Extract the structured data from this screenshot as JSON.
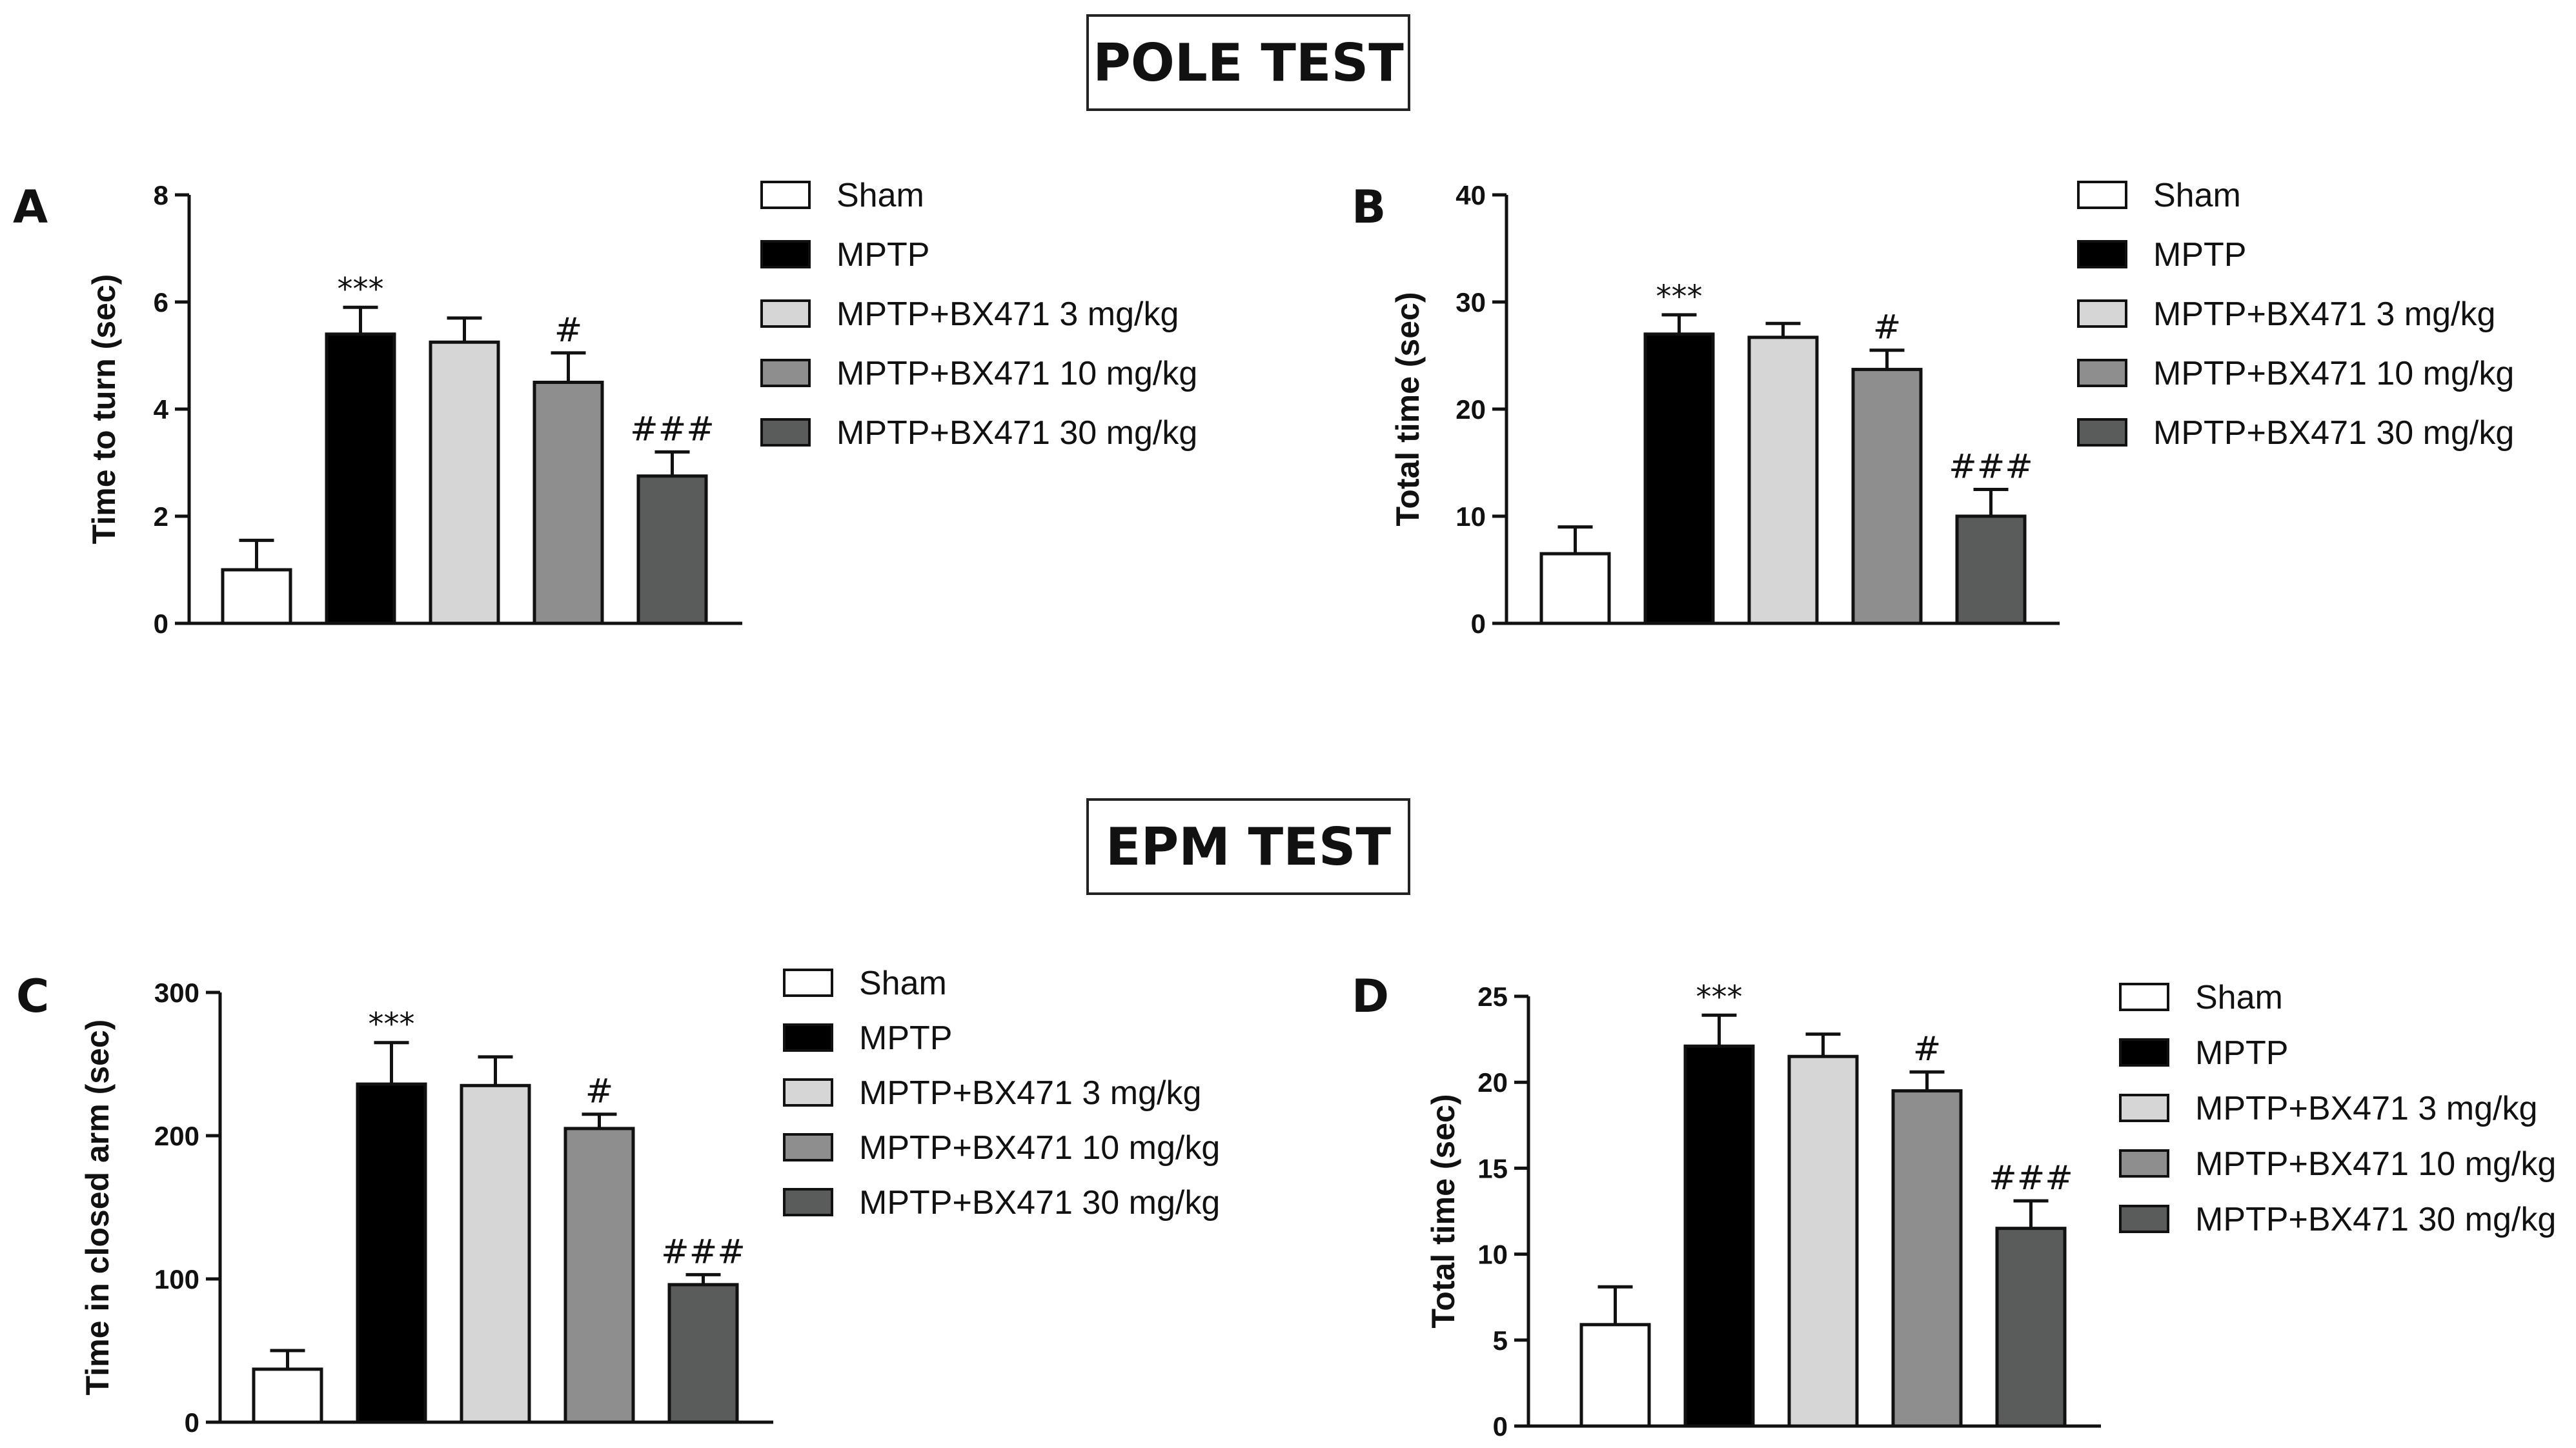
{
  "sections": [
    {
      "id": "pole",
      "title": "POLE TEST"
    },
    {
      "id": "epm",
      "title": "EPM TEST"
    }
  ],
  "colors": {
    "Sham": "#ffffff",
    "MPTP": "#000000",
    "MPTP+BX471 3 mg/kg": "#d6d6d6",
    "MPTP+BX471 10 mg/kg": "#8e8e8e",
    "MPTP+BX471 30 mg/kg": "#5a5c5c"
  },
  "chart_data": [
    {
      "panel": "A",
      "section": "POLE TEST",
      "type": "bar",
      "ylabel": "Time to turn (sec)",
      "ylim": [
        0,
        8
      ],
      "yticks": [
        0,
        2,
        4,
        6,
        8
      ],
      "categories": [
        "Sham",
        "MPTP",
        "MPTP+BX471 3 mg/kg",
        "MPTP+BX471 10 mg/kg",
        "MPTP+BX471 30 mg/kg"
      ],
      "values": [
        1.0,
        5.4,
        5.25,
        4.5,
        2.75
      ],
      "errors": [
        0.55,
        0.5,
        0.45,
        0.55,
        0.45
      ],
      "annotations": [
        "",
        "***",
        "",
        "#",
        "###"
      ],
      "legend": [
        "Sham",
        "MPTP",
        "MPTP+BX471 3 mg/kg",
        "MPTP+BX471 10 mg/kg",
        "MPTP+BX471 30 mg/kg"
      ]
    },
    {
      "panel": "B",
      "section": "POLE TEST",
      "type": "bar",
      "ylabel": "Total time (sec)",
      "ylim": [
        0,
        40
      ],
      "yticks": [
        0,
        10,
        20,
        30,
        40
      ],
      "categories": [
        "Sham",
        "MPTP",
        "MPTP+BX471 3 mg/kg",
        "MPTP+BX471 10 mg/kg",
        "MPTP+BX471 30 mg/kg"
      ],
      "values": [
        6.5,
        27.0,
        26.7,
        23.7,
        10.0
      ],
      "errors": [
        2.5,
        1.8,
        1.3,
        1.8,
        2.5
      ],
      "annotations": [
        "",
        "***",
        "",
        "#",
        "###"
      ],
      "legend": [
        "Sham",
        "MPTP",
        "MPTP+BX471 3 mg/kg",
        "MPTP+BX471 10 mg/kg",
        "MPTP+BX471 30 mg/kg"
      ]
    },
    {
      "panel": "C",
      "section": "EPM TEST",
      "type": "bar",
      "ylabel": "Time in closed arm (sec)",
      "ylim": [
        0,
        300
      ],
      "yticks": [
        0,
        100,
        200,
        300
      ],
      "categories": [
        "Sham",
        "MPTP",
        "MPTP+BX471 3 mg/kg",
        "MPTP+BX471 10 mg/kg",
        "MPTP+BX471 30 mg/kg"
      ],
      "values": [
        37,
        236,
        235,
        205,
        96
      ],
      "errors": [
        13,
        29,
        20,
        10,
        7
      ],
      "annotations": [
        "",
        "***",
        "",
        "#",
        "###"
      ],
      "legend": [
        "Sham",
        "MPTP",
        "MPTP+BX471 3 mg/kg",
        "MPTP+BX471 10 mg/kg",
        "MPTP+BX471 30 mg/kg"
      ]
    },
    {
      "panel": "D",
      "section": "EPM TEST",
      "type": "bar",
      "ylabel": "Total time (sec)",
      "ylim": [
        0,
        25
      ],
      "yticks": [
        0,
        5,
        10,
        15,
        20,
        25
      ],
      "categories": [
        "Sham",
        "MPTP",
        "MPTP+BX471 3 mg/kg",
        "MPTP+BX471 10 mg/kg",
        "MPTP+BX471 30 mg/kg"
      ],
      "values": [
        5.9,
        22.1,
        21.5,
        19.5,
        11.5
      ],
      "errors": [
        2.2,
        1.8,
        1.3,
        1.1,
        1.6
      ],
      "annotations": [
        "",
        "***",
        "",
        "#",
        "###"
      ],
      "legend": [
        "Sham",
        "MPTP",
        "MPTP+BX471 3 mg/kg",
        "MPTP+BX471 10 mg/kg",
        "MPTP+BX471 30 mg/kg"
      ]
    }
  ]
}
